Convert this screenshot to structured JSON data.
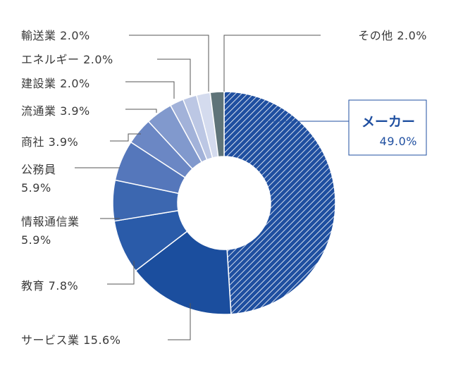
{
  "chart_data": {
    "type": "pie",
    "variant": "donut",
    "title": "",
    "slices": [
      {
        "name": "メーカー",
        "value": 49.0,
        "label": "49.0%",
        "color": "#1f4fa0",
        "pattern": "hatch",
        "highlight": true
      },
      {
        "name": "サービス業",
        "value": 15.6,
        "label": "15.6%",
        "color": "#1b4e9e"
      },
      {
        "name": "教育",
        "value": 7.8,
        "label": "7.8%",
        "color": "#2a5ba9"
      },
      {
        "name": "情報通信業",
        "value": 5.9,
        "label": "5.9%",
        "color": "#3c67b0"
      },
      {
        "name": "公務員",
        "value": 5.9,
        "label": "5.9%",
        "color": "#5577bb"
      },
      {
        "name": "商社",
        "value": 3.9,
        "label": "3.9%",
        "color": "#6b87c4"
      },
      {
        "name": "流通業",
        "value": 3.9,
        "label": "3.9%",
        "color": "#8199cd"
      },
      {
        "name": "建設業",
        "value": 2.0,
        "label": "2.0%",
        "color": "#a2b2d9"
      },
      {
        "name": "エネルギー",
        "value": 2.0,
        "label": "2.0%",
        "color": "#bcc7e4"
      },
      {
        "name": "輸送業",
        "value": 2.0,
        "label": "2.0%",
        "color": "#d4dbee"
      },
      {
        "name": "その他",
        "value": 2.0,
        "label": "2.0%",
        "color": "#5f7479"
      }
    ]
  }
}
